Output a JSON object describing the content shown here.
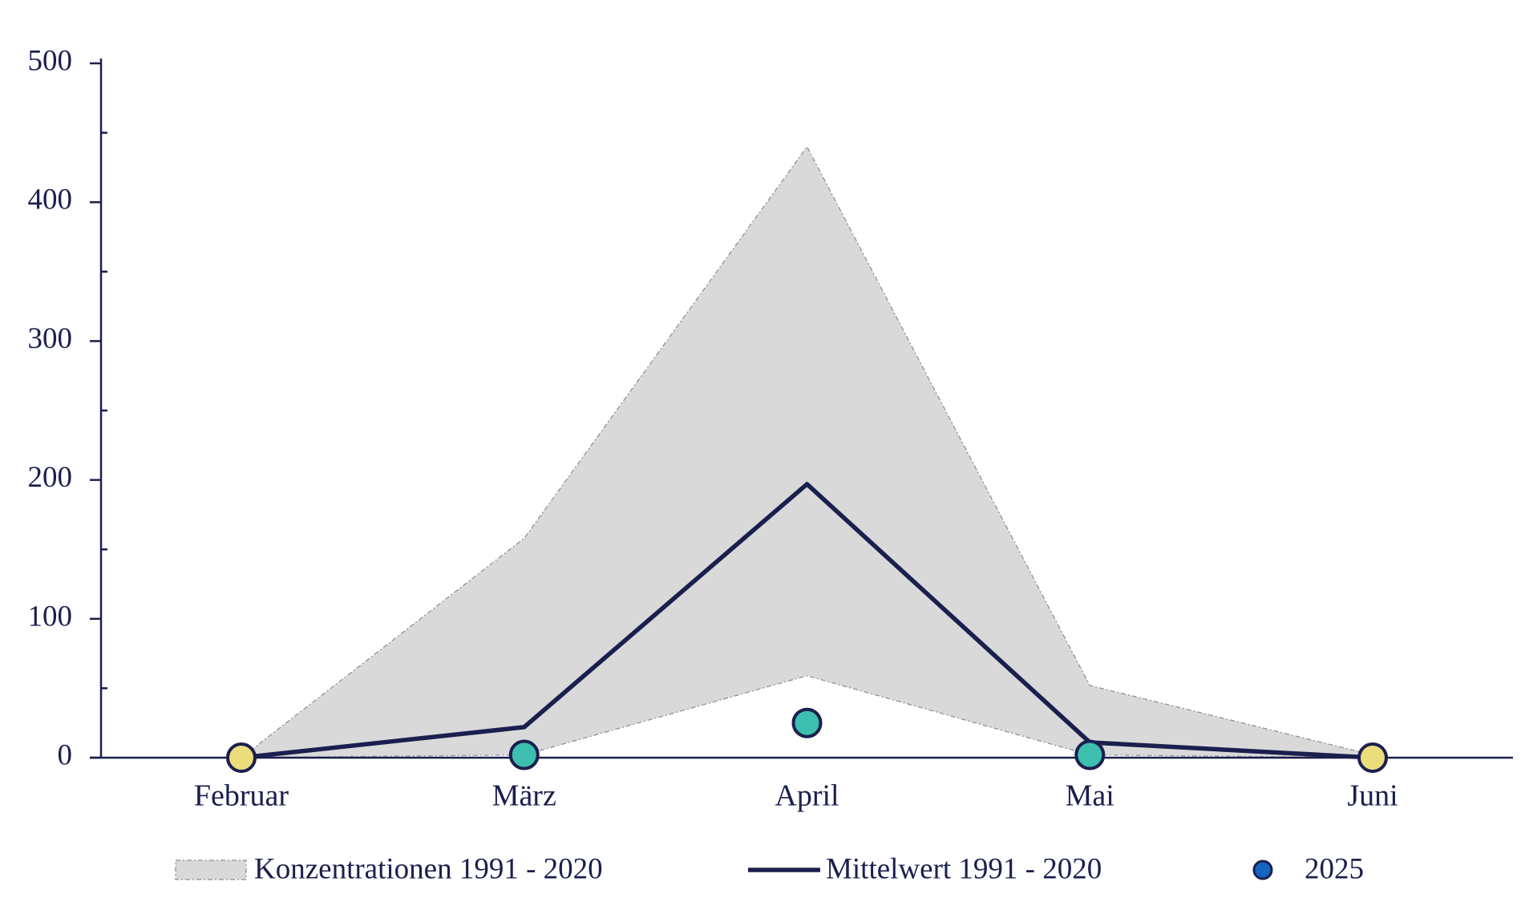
{
  "chart_data": {
    "type": "line",
    "categories": [
      "Februar",
      "März",
      "April",
      "Mai",
      "Juni"
    ],
    "series": [
      {
        "name": "Konzentrationen 1991 - 2020",
        "type": "band",
        "color": "#d9d9d9",
        "upper": [
          0,
          158,
          440,
          52,
          2
        ],
        "lower": [
          0,
          2,
          59,
          2,
          0
        ]
      },
      {
        "name": "Mittelwert 1991 - 2020",
        "type": "line",
        "color": "#1a1f4e",
        "values": [
          0,
          22,
          197,
          11,
          0
        ]
      },
      {
        "name": "2025",
        "type": "scatter",
        "color": "#1565c0",
        "colors": [
          "#ebdd7c",
          "#3cbfae",
          "#3cbfae",
          "#3cbfae",
          "#ebdd7c"
        ],
        "values": [
          0,
          2,
          25,
          2,
          0
        ]
      }
    ],
    "ylim": [
      0,
      500
    ],
    "yticks": [
      0,
      100,
      200,
      300,
      400,
      500
    ],
    "yminorticks": [
      50,
      150,
      250,
      350,
      450
    ]
  }
}
